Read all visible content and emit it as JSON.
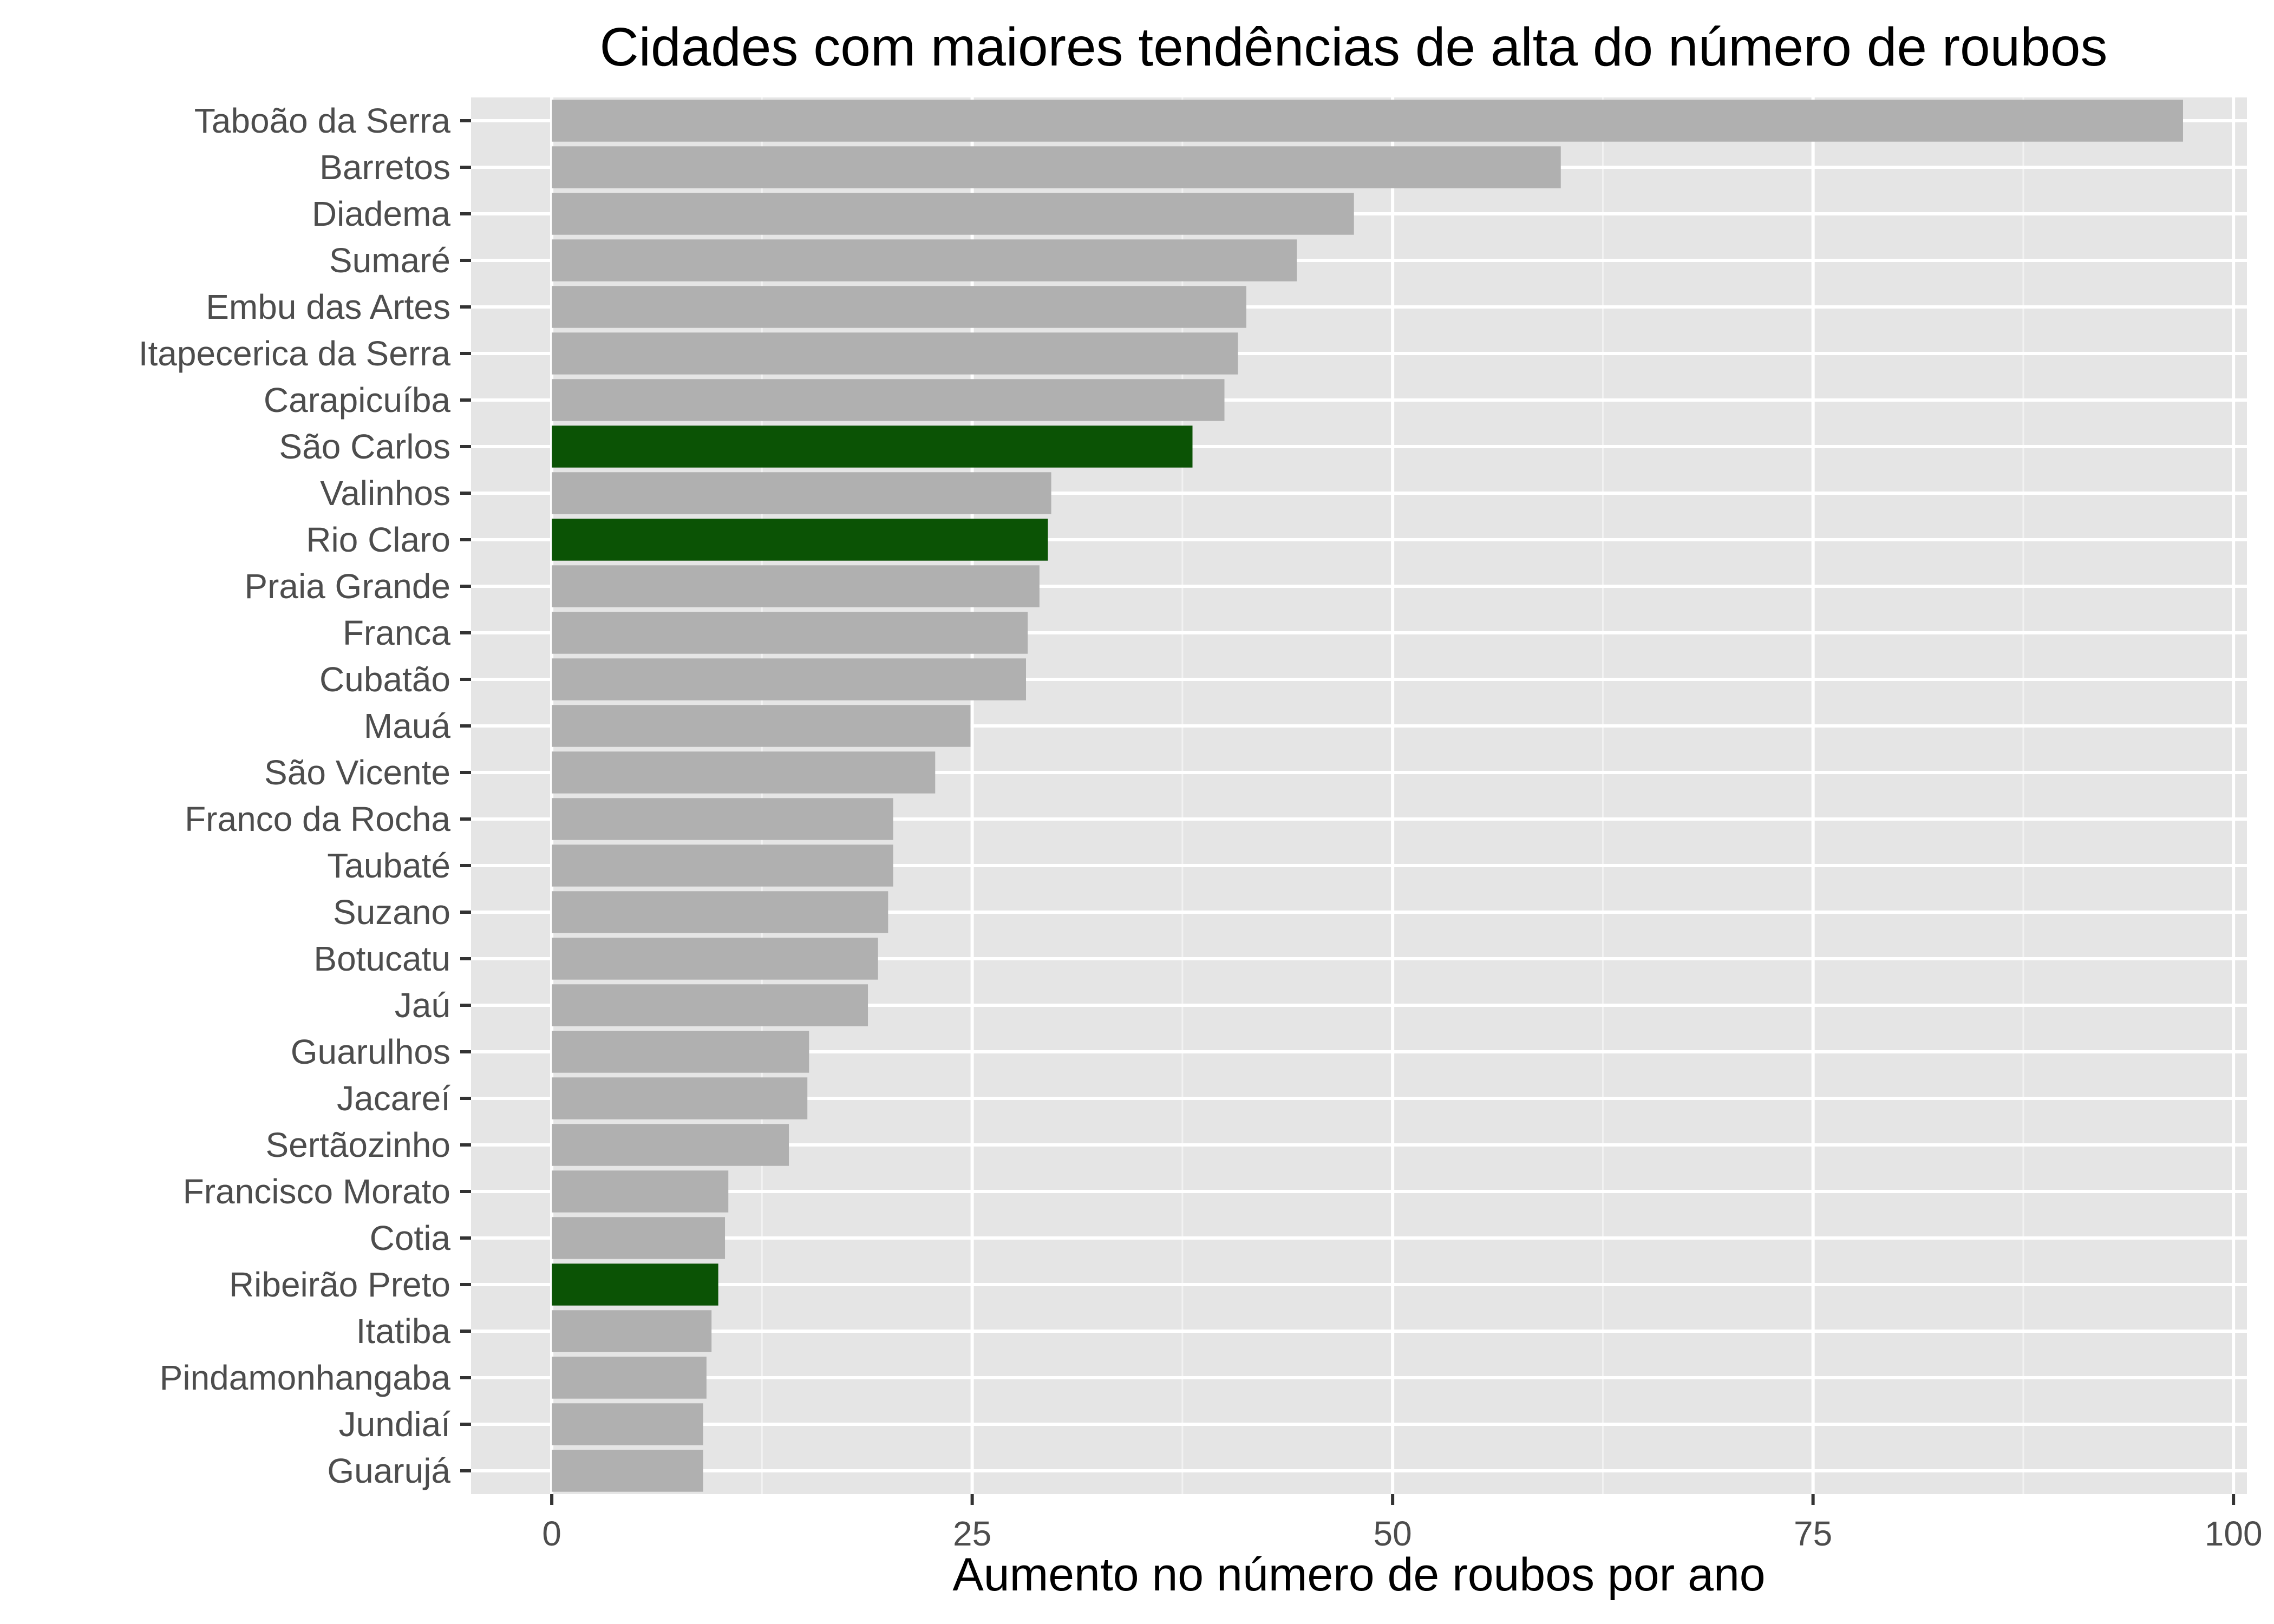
{
  "chart_data": {
    "type": "bar",
    "orientation": "horizontal",
    "title": "Cidades com maiores tendências de alta do número de roubos",
    "xlabel": "Aumento no número de roubos por ano",
    "ylabel": "",
    "xlim": [
      -4.8,
      100.8
    ],
    "x_ticks": [
      0,
      25,
      50,
      75,
      100
    ],
    "x_tick_labels": [
      "0",
      "25",
      "50",
      "75",
      "100"
    ],
    "grid": true,
    "legend": "none",
    "categories": [
      "Taboão da Serra",
      "Barretos",
      "Diadema",
      "Sumaré",
      "Embu das Artes",
      "Itapecerica da Serra",
      "Carapicuíba",
      "São Carlos",
      "Valinhos",
      "Rio Claro",
      "Praia Grande",
      "Franca",
      "Cubatão",
      "Mauá",
      "São Vicente",
      "Franco da Rocha",
      "Taubaté",
      "Suzano",
      "Botucatu",
      "Jaú",
      "Guarulhos",
      "Jacareí",
      "Sertãozinho",
      "Francisco Morato",
      "Cotia",
      "Ribeirão Preto",
      "Itatiba",
      "Pindamonhangaba",
      "Jundiaí",
      "Guarujá"
    ],
    "values": [
      97.0,
      60.0,
      47.7,
      44.3,
      41.3,
      40.8,
      40.0,
      38.1,
      29.7,
      29.5,
      29.0,
      28.3,
      28.2,
      24.9,
      22.8,
      20.3,
      20.3,
      20.0,
      19.4,
      18.8,
      15.3,
      15.2,
      14.1,
      10.5,
      10.3,
      9.9,
      9.5,
      9.2,
      9.0,
      9.0
    ],
    "highlighted": [
      "São Carlos",
      "Rio Claro",
      "Ribeirão Preto"
    ],
    "colors": {
      "bar_default": "#b0b0b0",
      "bar_highlight": "#0b5305",
      "panel_background": "#e5e5e5",
      "grid_major": "#ffffff",
      "grid_minor": "#f2f2f2",
      "tick_text": "#4d4d4d"
    }
  }
}
